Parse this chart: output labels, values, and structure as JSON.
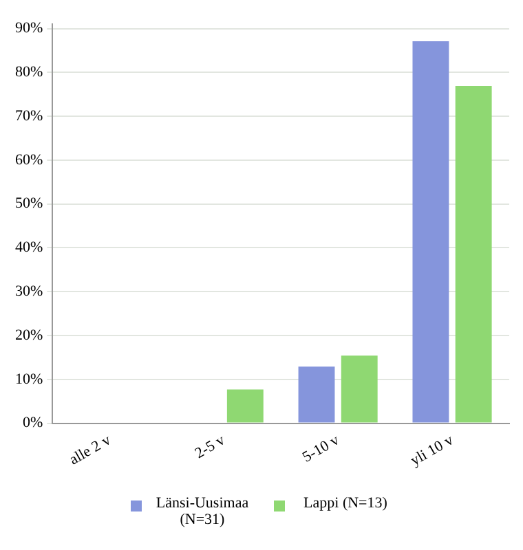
{
  "chart_data": {
    "type": "bar",
    "categories": [
      "alle 2 v",
      "2-5 v",
      "5-10 v",
      "yli 10 v"
    ],
    "series": [
      {
        "name": "Länsi-Uusimaa (N=31)",
        "color": "#8595dc",
        "values": [
          0,
          0,
          12.9,
          87.1
        ]
      },
      {
        "name": "Lappi (N=13)",
        "color": "#8fd872",
        "values": [
          0,
          7.7,
          15.4,
          76.9
        ]
      }
    ],
    "ylim": [
      0,
      91
    ],
    "yticks": [
      {
        "value": 0,
        "label": "0%"
      },
      {
        "value": 10,
        "label": "10%"
      },
      {
        "value": 20,
        "label": "20%"
      },
      {
        "value": 30,
        "label": "30%"
      },
      {
        "value": 40,
        "label": "40%"
      },
      {
        "value": 50,
        "label": "50%"
      },
      {
        "value": 60,
        "label": "60%"
      },
      {
        "value": 70,
        "label": "70%"
      },
      {
        "value": 80,
        "label": "80%"
      },
      {
        "value": 90,
        "label": "90%"
      }
    ],
    "grid": "y",
    "legend": "bottom"
  }
}
